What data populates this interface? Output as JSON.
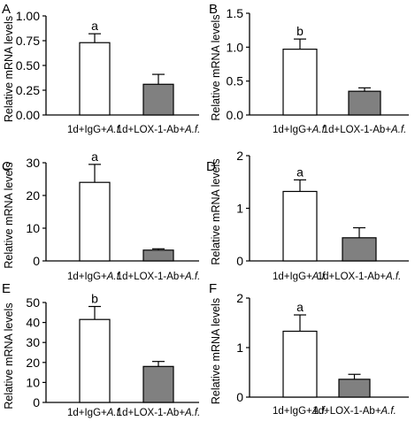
{
  "figure": {
    "panels": [
      "A",
      "B",
      "C",
      "D",
      "E",
      "F"
    ]
  },
  "chart_data": [
    {
      "panel": "A",
      "type": "bar",
      "ylabel": "Relative mRNA levels",
      "categories": [
        {
          "prefix": "1d+IgG+",
          "italic": "A.f."
        },
        {
          "prefix": "1d+LOX-1-Ab+",
          "italic": "A.f."
        }
      ],
      "values": [
        0.73,
        0.31
      ],
      "errors": [
        0.09,
        0.1
      ],
      "fills": [
        "#ffffff",
        "#808080"
      ],
      "significance": [
        "a",
        ""
      ],
      "ylim": [
        0,
        1.0
      ],
      "yticks": [
        0,
        0.25,
        0.5,
        0.75,
        1.0
      ],
      "ytick_labels": [
        "0.00",
        "0.25",
        "0.50",
        "0.75",
        "1.00"
      ]
    },
    {
      "panel": "B",
      "type": "bar",
      "ylabel": "Relative mRNA levels",
      "categories": [
        {
          "prefix": "1d+IgG+",
          "italic": "A.f."
        },
        {
          "prefix": "1d+LOX-1-Ab+",
          "italic": "A.f."
        }
      ],
      "values": [
        0.97,
        0.35
      ],
      "errors": [
        0.15,
        0.05
      ],
      "fills": [
        "#ffffff",
        "#808080"
      ],
      "significance": [
        "b",
        ""
      ],
      "ylim": [
        0,
        1.5
      ],
      "yticks": [
        0,
        0.5,
        1.0,
        1.5
      ],
      "ytick_labels": [
        "0.0",
        "0.5",
        "1.0",
        "1.5"
      ]
    },
    {
      "panel": "C",
      "type": "bar",
      "ylabel": "Relative mRNA levels",
      "categories": [
        {
          "prefix": "1d+IgG+",
          "italic": "A.f."
        },
        {
          "prefix": "1d+LOX-1-Ab+",
          "italic": "A.f."
        }
      ],
      "values": [
        24,
        3.3
      ],
      "errors": [
        5.5,
        0.4
      ],
      "fills": [
        "#ffffff",
        "#808080"
      ],
      "significance": [
        "a",
        ""
      ],
      "ylim": [
        0,
        30
      ],
      "yticks": [
        0,
        10,
        20,
        30
      ],
      "ytick_labels": [
        "0",
        "10",
        "20",
        "30"
      ]
    },
    {
      "panel": "D",
      "type": "bar",
      "ylabel": "Relative mRNA levels",
      "categories": [
        {
          "prefix": "1d+IgG+",
          "italic": "A.f."
        },
        {
          "prefix": "1d+LOX-1-Ab+",
          "italic": "A.f."
        }
      ],
      "values": [
        1.32,
        0.44
      ],
      "errors": [
        0.22,
        0.19
      ],
      "fills": [
        "#ffffff",
        "#808080"
      ],
      "significance": [
        "a",
        ""
      ],
      "ylim": [
        0,
        2
      ],
      "yticks": [
        0,
        1,
        2
      ],
      "ytick_labels": [
        "0",
        "1",
        "2"
      ]
    },
    {
      "panel": "E",
      "type": "bar",
      "ylabel": "Relative mRNA levels",
      "categories": [
        {
          "prefix": "1d+IgG+",
          "italic": "A.f."
        },
        {
          "prefix": "1d+LOX-1-Ab+",
          "italic": "A.f."
        }
      ],
      "values": [
        41.5,
        18
      ],
      "errors": [
        6.5,
        2.5
      ],
      "fills": [
        "#ffffff",
        "#808080"
      ],
      "significance": [
        "b",
        ""
      ],
      "ylim": [
        0,
        50
      ],
      "yticks": [
        0,
        10,
        20,
        30,
        40,
        50
      ],
      "ytick_labels": [
        "0",
        "10",
        "20",
        "30",
        "40",
        "50"
      ]
    },
    {
      "panel": "F",
      "type": "bar",
      "ylabel": "Relative mRNA levels",
      "categories": [
        {
          "prefix": "1d+IgG+",
          "italic": "A.f."
        },
        {
          "prefix": "1d+LOX-1-Ab+",
          "italic": "A.f."
        }
      ],
      "values": [
        1.33,
        0.36
      ],
      "errors": [
        0.33,
        0.1
      ],
      "fills": [
        "#ffffff",
        "#808080"
      ],
      "significance": [
        "a",
        ""
      ],
      "ylim": [
        0,
        2
      ],
      "yticks": [
        0,
        1,
        2
      ],
      "ytick_labels": [
        "0",
        "1",
        "2"
      ]
    }
  ]
}
